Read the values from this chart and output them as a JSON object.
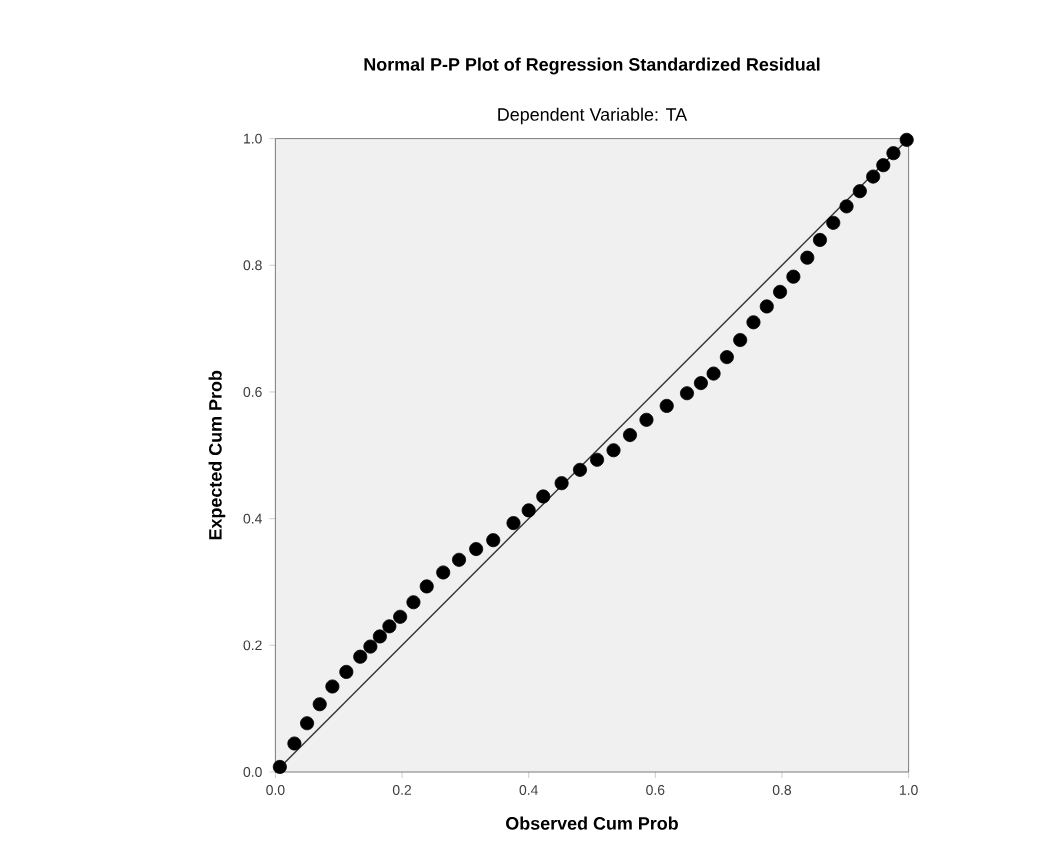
{
  "chart_data": {
    "type": "scatter",
    "title": "Normal P-P Plot of Regression Standardized Residual",
    "subtitle": "Dependent Variable: TA",
    "xlabel": "Observed Cum Prob",
    "ylabel": "Expected Cum Prob",
    "xlim": [
      0,
      1
    ],
    "ylim": [
      0,
      1
    ],
    "xticks": [
      {
        "value": 0,
        "label": "0.0"
      },
      0.2,
      0.4,
      0.6,
      0.8,
      {
        "value": 1,
        "label": "1.0"
      }
    ],
    "yticks": [
      {
        "value": 0,
        "label": "0.0"
      },
      0.2,
      0.4,
      0.6,
      0.8,
      {
        "value": 1,
        "label": "1.0"
      }
    ],
    "grid": false,
    "series": [
      {
        "marker": "circle",
        "color": "#000000",
        "x": [
          0.007,
          0.03,
          0.05,
          0.07,
          0.09,
          0.112,
          0.134,
          0.15,
          0.165,
          0.18,
          0.197,
          0.218,
          0.239,
          0.265,
          0.29,
          0.317,
          0.344,
          0.376,
          0.4,
          0.423,
          0.452,
          0.481,
          0.508,
          0.534,
          0.56,
          0.586,
          0.618,
          0.65,
          0.672,
          0.692,
          0.713,
          0.734,
          0.755,
          0.776,
          0.797,
          0.818,
          0.84,
          0.86,
          0.881,
          0.902,
          0.923,
          0.944,
          0.96,
          0.976,
          0.997
        ],
        "values": [
          0.008,
          0.045,
          0.077,
          0.107,
          0.135,
          0.158,
          0.182,
          0.198,
          0.214,
          0.23,
          0.245,
          0.268,
          0.293,
          0.315,
          0.335,
          0.352,
          0.366,
          0.393,
          0.413,
          0.435,
          0.456,
          0.477,
          0.493,
          0.508,
          0.532,
          0.556,
          0.578,
          0.598,
          0.614,
          0.629,
          0.655,
          0.682,
          0.71,
          0.735,
          0.758,
          0.782,
          0.812,
          0.84,
          0.867,
          0.893,
          0.917,
          0.94,
          0.958,
          0.977,
          0.998
        ]
      },
      {
        "type": "line",
        "marker": "none",
        "color": "#333333",
        "x": [
          0,
          1
        ],
        "values": [
          0,
          1
        ]
      }
    ]
  }
}
